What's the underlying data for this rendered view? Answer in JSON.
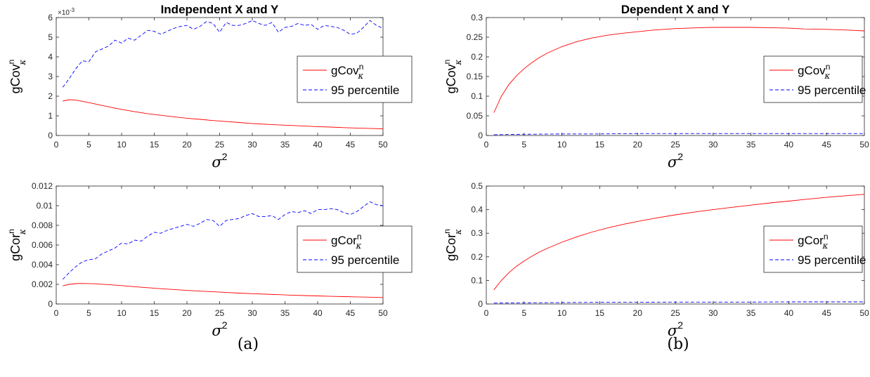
{
  "figure": {
    "captions": [
      "(a)",
      "(b)"
    ],
    "x_label": "σ",
    "x_label_sup": "2",
    "legend_red_main": "gCov",
    "legend_red_main_cor": "gCor",
    "legend_red_sup": "n",
    "legend_red_sub": "κ",
    "legend_blue": "95 percentile"
  },
  "chart_data": [
    {
      "type": "line",
      "title": "Independent X and Y",
      "xlabel": "σ^2",
      "ylabel": "gCov^n_κ",
      "y_multiplier": "×10-3",
      "xlim": [
        0,
        50
      ],
      "ylim": [
        0,
        6
      ],
      "xticks": [
        0,
        5,
        10,
        15,
        20,
        25,
        30,
        35,
        40,
        45,
        50
      ],
      "yticks": [
        0,
        1,
        2,
        3,
        4,
        5,
        6
      ],
      "ytick_labels": [
        "0",
        "1",
        "2",
        "3",
        "4",
        "5",
        "6"
      ],
      "legend": "right",
      "series": [
        {
          "name": "gCov^n_κ",
          "color": "#ff0000",
          "style": "solid",
          "x": [
            1,
            2,
            3,
            4,
            5,
            6,
            7,
            8,
            9,
            10,
            12,
            14,
            16,
            18,
            20,
            22,
            24,
            26,
            28,
            30,
            32,
            34,
            36,
            38,
            40,
            42,
            44,
            46,
            48,
            50
          ],
          "y": [
            1.75,
            1.82,
            1.8,
            1.74,
            1.67,
            1.6,
            1.53,
            1.46,
            1.39,
            1.33,
            1.21,
            1.11,
            1.03,
            0.95,
            0.88,
            0.82,
            0.76,
            0.71,
            0.66,
            0.61,
            0.57,
            0.54,
            0.51,
            0.48,
            0.45,
            0.43,
            0.4,
            0.38,
            0.36,
            0.34
          ]
        },
        {
          "name": "95 percentile",
          "color": "#0000ff",
          "style": "dashed",
          "x": [
            1,
            2,
            3,
            4,
            5,
            6,
            7,
            8,
            9,
            10,
            11,
            12,
            13,
            14,
            15,
            16,
            17,
            18,
            19,
            20,
            21,
            22,
            23,
            24,
            25,
            26,
            27,
            28,
            29,
            30,
            31,
            32,
            33,
            34,
            35,
            36,
            37,
            38,
            39,
            40,
            41,
            42,
            43,
            44,
            45,
            46,
            47,
            48,
            49,
            50
          ],
          "y": [
            2.45,
            2.9,
            3.4,
            3.8,
            3.75,
            4.25,
            4.4,
            4.55,
            4.85,
            4.7,
            4.95,
            4.85,
            5.1,
            5.35,
            5.3,
            5.15,
            5.3,
            5.45,
            5.55,
            5.6,
            5.4,
            5.55,
            5.8,
            5.7,
            5.25,
            5.75,
            5.6,
            5.6,
            5.7,
            5.85,
            5.7,
            5.6,
            5.75,
            5.25,
            5.5,
            5.55,
            5.7,
            5.6,
            5.65,
            5.4,
            5.6,
            5.55,
            5.5,
            5.35,
            5.15,
            5.2,
            5.5,
            5.85,
            5.6,
            5.45
          ]
        }
      ]
    },
    {
      "type": "line",
      "title": "Dependent X and Y",
      "xlabel": "σ^2",
      "ylabel": "gCov^n_κ",
      "xlim": [
        0,
        50
      ],
      "ylim": [
        0,
        0.3
      ],
      "xticks": [
        0,
        5,
        10,
        15,
        20,
        25,
        30,
        35,
        40,
        45,
        50
      ],
      "yticks": [
        0,
        0.05,
        0.1,
        0.15,
        0.2,
        0.25,
        0.3
      ],
      "ytick_labels": [
        "0",
        "0.05",
        "0.1",
        "0.15",
        "0.2",
        "0.25",
        "0.3"
      ],
      "legend": "right",
      "series": [
        {
          "name": "gCov^n_κ",
          "color": "#ff0000",
          "style": "solid",
          "x": [
            1,
            2,
            3,
            4,
            5,
            6,
            7,
            8,
            10,
            12,
            14,
            16,
            18,
            20,
            22,
            25,
            28,
            30,
            32,
            35,
            38,
            40,
            42,
            45,
            48,
            50
          ],
          "y": [
            0.058,
            0.1,
            0.13,
            0.152,
            0.17,
            0.185,
            0.198,
            0.209,
            0.226,
            0.239,
            0.248,
            0.255,
            0.26,
            0.264,
            0.268,
            0.272,
            0.274,
            0.275,
            0.275,
            0.275,
            0.274,
            0.273,
            0.271,
            0.27,
            0.268,
            0.266
          ]
        },
        {
          "name": "95 percentile",
          "color": "#0000ff",
          "style": "dashed",
          "x": [
            1,
            5,
            10,
            15,
            20,
            25,
            30,
            35,
            40,
            45,
            50
          ],
          "y": [
            0.002,
            0.003,
            0.004,
            0.004,
            0.005,
            0.005,
            0.005,
            0.005,
            0.005,
            0.005,
            0.005
          ]
        }
      ]
    },
    {
      "type": "line",
      "title": "",
      "xlabel": "σ^2",
      "ylabel": "gCor^n_κ",
      "xlim": [
        0,
        50
      ],
      "ylim": [
        0,
        0.012
      ],
      "xticks": [
        0,
        5,
        10,
        15,
        20,
        25,
        30,
        35,
        40,
        45,
        50
      ],
      "yticks": [
        0,
        0.002,
        0.004,
        0.006,
        0.008,
        0.01,
        0.012
      ],
      "ytick_labels": [
        "0",
        "0.002",
        "0.004",
        "0.006",
        "0.008",
        "0.01",
        "0.012"
      ],
      "legend": "right",
      "series": [
        {
          "name": "gCor^n_κ",
          "color": "#ff0000",
          "style": "solid",
          "x": [
            1,
            2,
            3,
            4,
            5,
            6,
            8,
            10,
            12,
            14,
            16,
            18,
            20,
            22,
            24,
            26,
            28,
            30,
            32,
            34,
            36,
            38,
            40,
            42,
            44,
            46,
            48,
            50
          ],
          "y": [
            0.00185,
            0.002,
            0.00207,
            0.00209,
            0.00208,
            0.00205,
            0.00197,
            0.00187,
            0.00176,
            0.00166,
            0.00156,
            0.00147,
            0.00138,
            0.00131,
            0.00124,
            0.00117,
            0.00111,
            0.00105,
            0.001,
            0.00095,
            0.0009,
            0.00086,
            0.00082,
            0.00078,
            0.00075,
            0.00072,
            0.00069,
            0.00066
          ]
        },
        {
          "name": "95 percentile",
          "color": "#0000ff",
          "style": "dashed",
          "x": [
            1,
            2,
            3,
            4,
            5,
            6,
            7,
            8,
            9,
            10,
            11,
            12,
            13,
            14,
            15,
            16,
            17,
            18,
            19,
            20,
            21,
            22,
            23,
            24,
            25,
            26,
            27,
            28,
            29,
            30,
            31,
            32,
            33,
            34,
            35,
            36,
            37,
            38,
            39,
            40,
            41,
            42,
            43,
            44,
            45,
            46,
            47,
            48,
            49,
            50
          ],
          "y": [
            0.0025,
            0.0032,
            0.0038,
            0.0043,
            0.0045,
            0.0046,
            0.0051,
            0.0054,
            0.0057,
            0.0062,
            0.0061,
            0.0065,
            0.0064,
            0.0069,
            0.0073,
            0.0072,
            0.0075,
            0.0077,
            0.0079,
            0.0081,
            0.0079,
            0.0082,
            0.0086,
            0.0085,
            0.0079,
            0.0085,
            0.0086,
            0.0087,
            0.009,
            0.0092,
            0.0089,
            0.0089,
            0.009,
            0.0086,
            0.0091,
            0.0094,
            0.0093,
            0.0095,
            0.0092,
            0.0096,
            0.0096,
            0.0097,
            0.0096,
            0.0093,
            0.0091,
            0.0094,
            0.0099,
            0.0104,
            0.0101,
            0.01
          ]
        }
      ]
    },
    {
      "type": "line",
      "title": "",
      "xlabel": "σ^2",
      "ylabel": "gCor^n_κ",
      "xlim": [
        0,
        50
      ],
      "ylim": [
        0,
        0.5
      ],
      "xticks": [
        0,
        5,
        10,
        15,
        20,
        25,
        30,
        35,
        40,
        45,
        50
      ],
      "yticks": [
        0,
        0.1,
        0.2,
        0.3,
        0.4,
        0.5
      ],
      "ytick_labels": [
        "0",
        "0.1",
        "0.2",
        "0.3",
        "0.4",
        "0.5"
      ],
      "legend": "right",
      "series": [
        {
          "name": "gCor^n_κ",
          "color": "#ff0000",
          "style": "solid",
          "x": [
            1,
            2,
            3,
            4,
            5,
            6,
            7,
            8,
            10,
            12,
            14,
            16,
            18,
            20,
            22,
            25,
            28,
            30,
            32,
            35,
            38,
            40,
            42,
            45,
            48,
            50
          ],
          "y": [
            0.06,
            0.1,
            0.133,
            0.16,
            0.182,
            0.202,
            0.22,
            0.235,
            0.262,
            0.285,
            0.305,
            0.322,
            0.337,
            0.35,
            0.362,
            0.378,
            0.392,
            0.4,
            0.408,
            0.419,
            0.43,
            0.436,
            0.443,
            0.452,
            0.46,
            0.465
          ]
        },
        {
          "name": "95 percentile",
          "color": "#0000ff",
          "style": "dashed",
          "x": [
            1,
            5,
            10,
            15,
            20,
            25,
            30,
            35,
            40,
            45,
            50
          ],
          "y": [
            0.004,
            0.005,
            0.006,
            0.007,
            0.007,
            0.008,
            0.008,
            0.008,
            0.009,
            0.009,
            0.009
          ]
        }
      ]
    }
  ]
}
